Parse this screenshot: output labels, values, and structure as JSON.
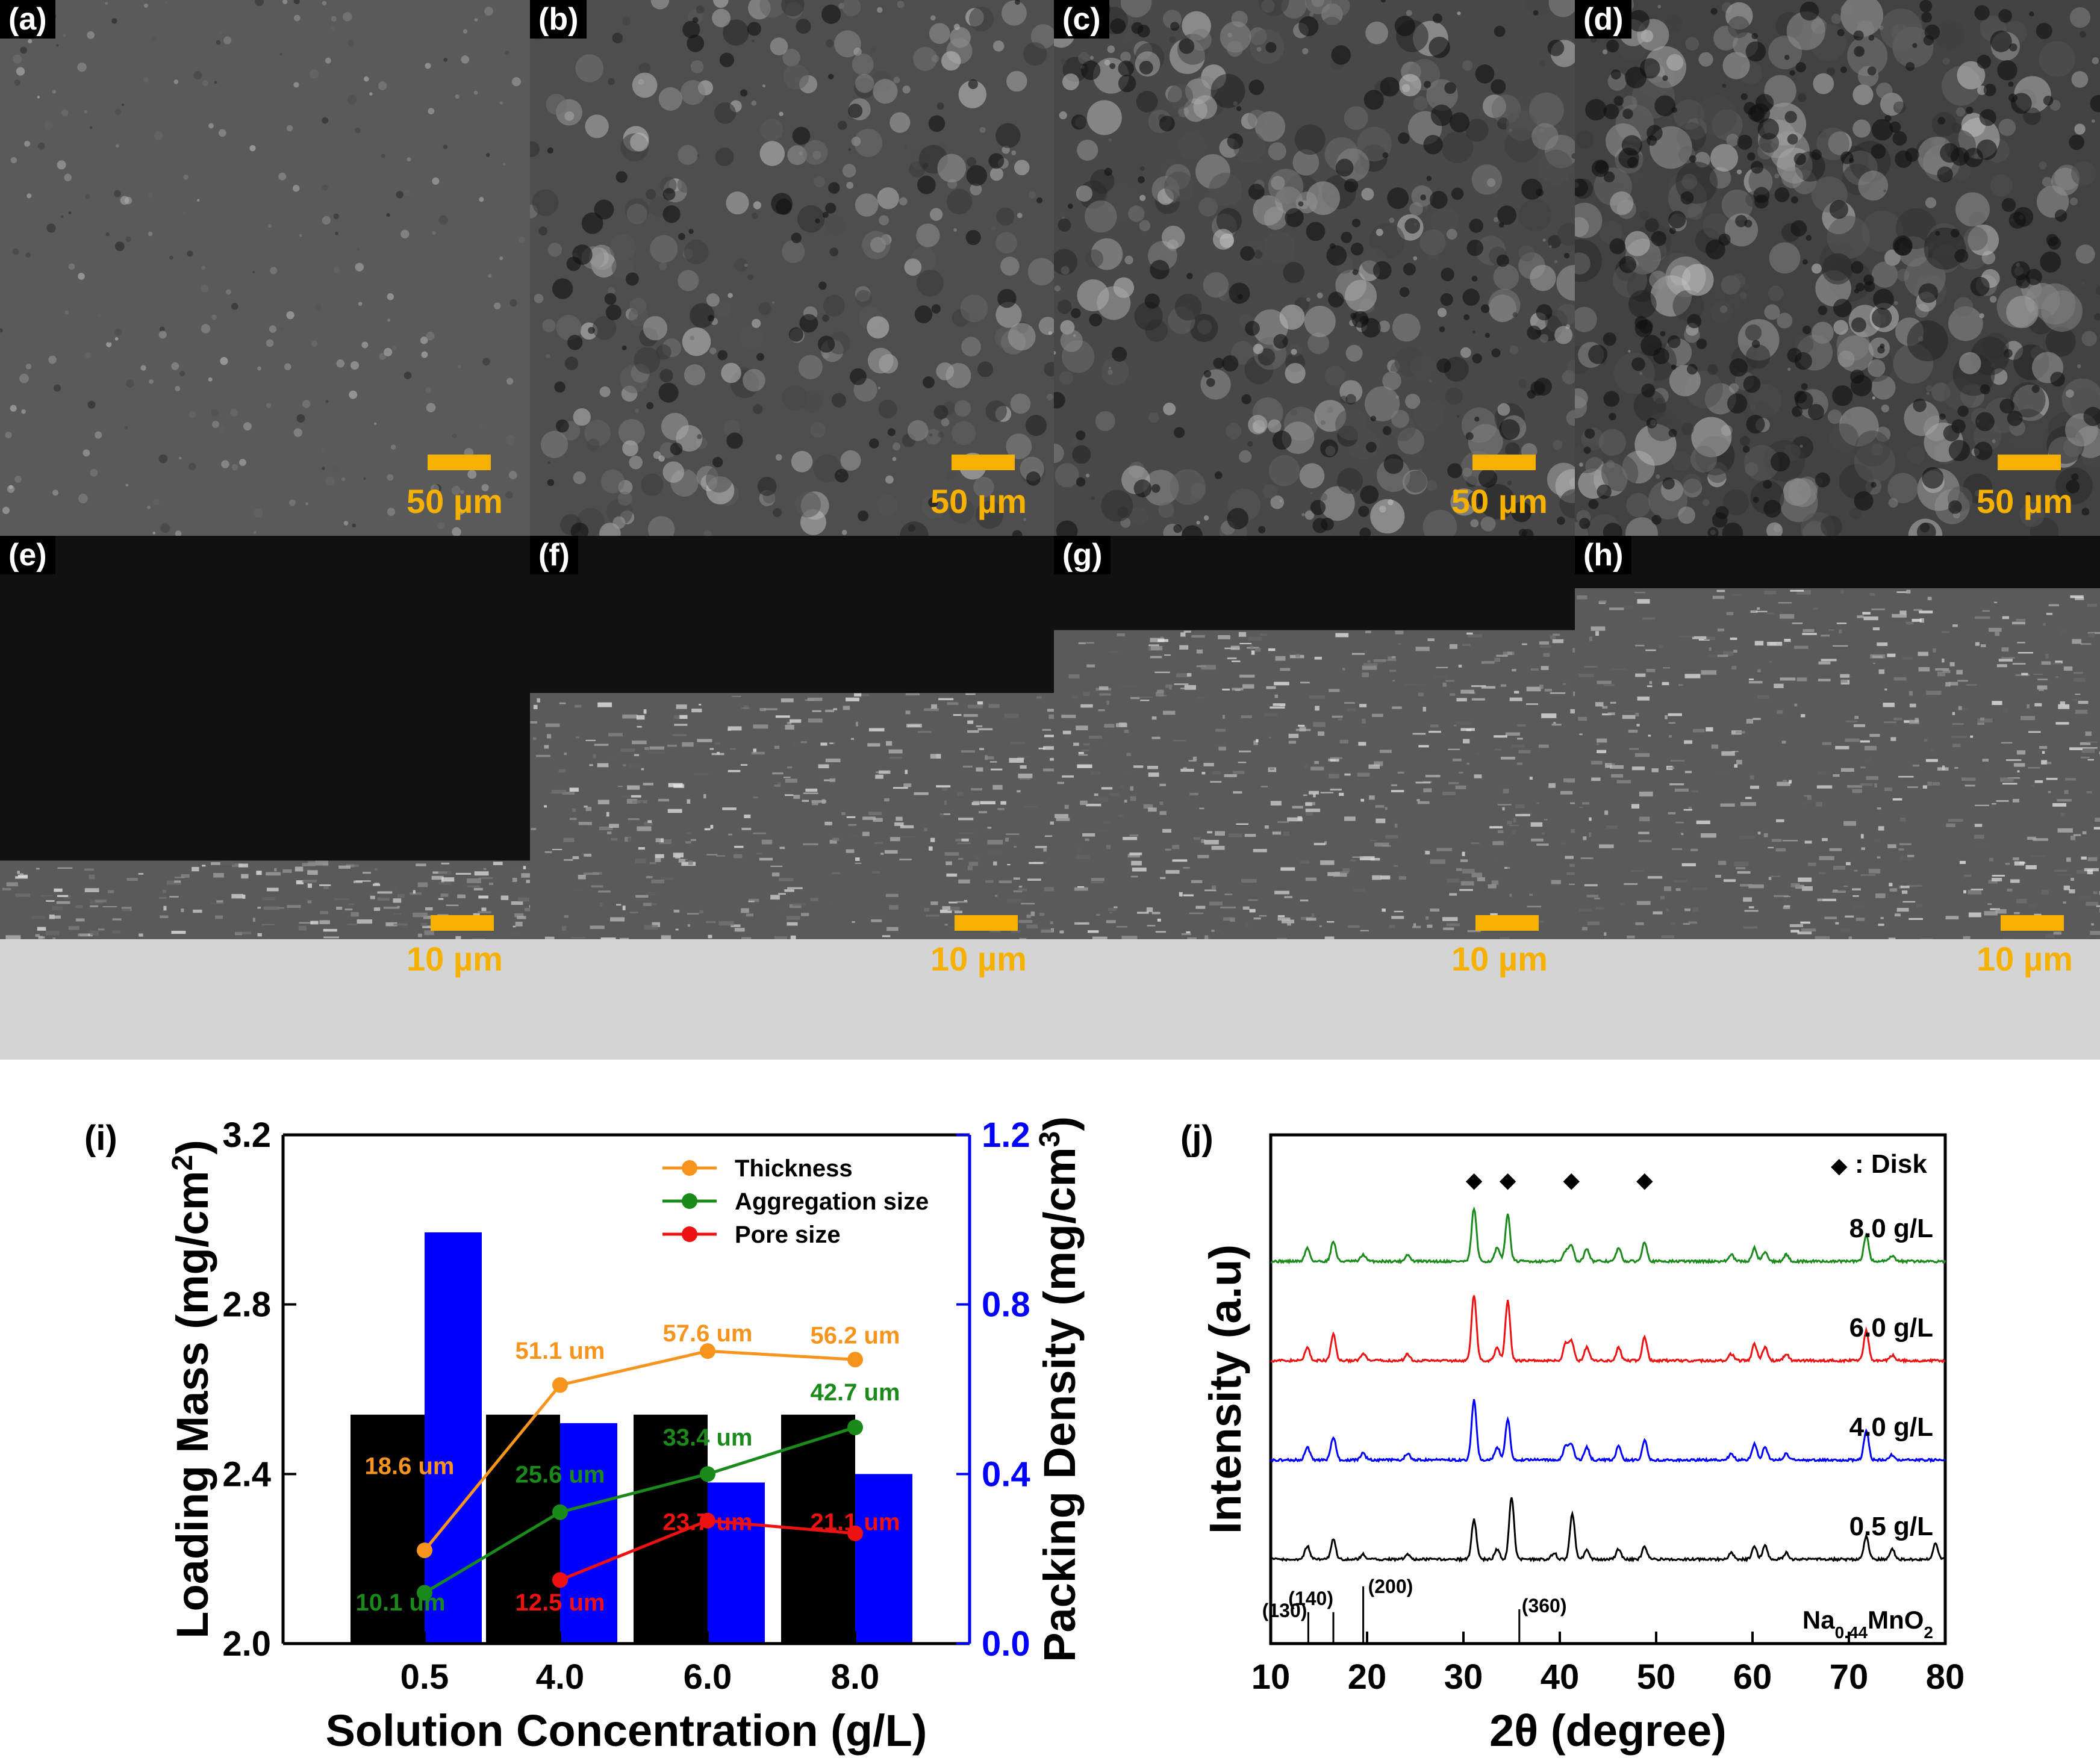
{
  "sem_panels": [
    {
      "label": "(a)",
      "scale": "50 µm"
    },
    {
      "label": "(b)",
      "scale": "50 µm"
    },
    {
      "label": "(c)",
      "scale": "50 µm"
    },
    {
      "label": "(d)",
      "scale": "50 µm"
    },
    {
      "label": "(e)",
      "scale": "10 µm"
    },
    {
      "label": "(f)",
      "scale": "10 µm"
    },
    {
      "label": "(g)",
      "scale": "10 µm"
    },
    {
      "label": "(h)",
      "scale": "10 µm"
    }
  ],
  "colors": {
    "scale_bar": "#f5b000",
    "thickness": "#f7941d",
    "aggregation": "#1a8a1a",
    "pore": "#ee1111",
    "packing_bar": "#0000ff",
    "loading_bar": "#000000"
  },
  "chart_data": [
    {
      "panel": "(i)",
      "type": "bar",
      "categories": [
        "0.5",
        "4.0",
        "6.0",
        "8.0"
      ],
      "xlabel": "Solution Concentration (g/L)",
      "ylabel": "Loading Mass (mg/cm",
      "ylabel_sup": "2",
      "ylabel_end": ")",
      "ylim": [
        2.0,
        3.2
      ],
      "yticks": [
        "2.0",
        "2.4",
        "2.8",
        "3.2"
      ],
      "y2label": "Packing Density (mg/cm",
      "y2label_sup": "3",
      "y2label_end": ")",
      "y2lim": [
        0.0,
        1.2
      ],
      "y2ticks": [
        "0.0",
        "0.4",
        "0.8",
        "1.2"
      ],
      "bars": [
        {
          "name": "Loading Mass",
          "axis": "left",
          "values": [
            2.54,
            2.54,
            2.54,
            2.54
          ]
        },
        {
          "name": "Packing Density",
          "axis": "right",
          "values": [
            0.97,
            0.52,
            0.38,
            0.4
          ]
        }
      ],
      "lines": [
        {
          "name": "Thickness",
          "values": [
            2.22,
            2.61,
            2.69,
            2.67
          ],
          "labels": [
            "18.6 um",
            "51.1 um",
            "57.6 um",
            "56.2 um"
          ]
        },
        {
          "name": "Aggregation size",
          "values": [
            2.12,
            2.31,
            2.4,
            2.51
          ],
          "labels": [
            "10.1 um",
            "25.6 um",
            "33.4 um",
            "42.7 um"
          ]
        },
        {
          "name": "Pore size",
          "values": [
            null,
            2.15,
            2.29,
            2.26
          ],
          "labels": [
            "",
            "12.5 um",
            "23.7 um",
            "21.1 um"
          ]
        }
      ],
      "legend": "top-right"
    },
    {
      "panel": "(j)",
      "type": "line",
      "xlabel": "2θ (degree)",
      "ylabel": "Intensity (a.u)",
      "xlim": [
        10,
        80
      ],
      "xticks": [
        "10",
        "20",
        "30",
        "40",
        "50",
        "60",
        "70",
        "80"
      ],
      "legend_marker": "◆",
      "legend_text": ": Disk",
      "disk_peaks": [
        31.1,
        34.6,
        41.2,
        48.8
      ],
      "series": [
        {
          "name": "8.0 g/L",
          "peaks": [
            [
              13.8,
              0.2
            ],
            [
              16.5,
              0.3
            ],
            [
              19.6,
              0.1
            ],
            [
              24.2,
              0.1
            ],
            [
              31.1,
              0.8
            ],
            [
              33.5,
              0.2
            ],
            [
              34.6,
              0.7
            ],
            [
              40.6,
              0.15
            ],
            [
              41.2,
              0.25
            ],
            [
              42.8,
              0.2
            ],
            [
              46.1,
              0.2
            ],
            [
              48.8,
              0.3
            ],
            [
              57.8,
              0.1
            ],
            [
              60.2,
              0.2
            ],
            [
              61.3,
              0.15
            ],
            [
              63.5,
              0.1
            ],
            [
              71.8,
              0.4
            ],
            [
              74.5,
              0.08
            ]
          ]
        },
        {
          "name": "6.0 g/L",
          "peaks": [
            [
              13.8,
              0.2
            ],
            [
              16.5,
              0.4
            ],
            [
              19.6,
              0.1
            ],
            [
              24.2,
              0.1
            ],
            [
              31.1,
              1.0
            ],
            [
              33.5,
              0.2
            ],
            [
              34.6,
              0.9
            ],
            [
              40.6,
              0.25
            ],
            [
              41.2,
              0.3
            ],
            [
              42.8,
              0.2
            ],
            [
              46.1,
              0.2
            ],
            [
              48.8,
              0.35
            ],
            [
              57.8,
              0.1
            ],
            [
              60.2,
              0.25
            ],
            [
              61.3,
              0.2
            ],
            [
              63.5,
              0.1
            ],
            [
              71.8,
              0.45
            ],
            [
              74.5,
              0.08
            ]
          ]
        },
        {
          "name": "4.0 g/L",
          "peaks": [
            [
              13.8,
              0.2
            ],
            [
              16.5,
              0.35
            ],
            [
              19.6,
              0.1
            ],
            [
              24.2,
              0.1
            ],
            [
              31.1,
              0.9
            ],
            [
              33.5,
              0.2
            ],
            [
              34.6,
              0.6
            ],
            [
              40.6,
              0.2
            ],
            [
              41.2,
              0.25
            ],
            [
              42.8,
              0.2
            ],
            [
              46.1,
              0.2
            ],
            [
              48.8,
              0.3
            ],
            [
              57.8,
              0.1
            ],
            [
              60.2,
              0.25
            ],
            [
              61.3,
              0.2
            ],
            [
              63.5,
              0.1
            ],
            [
              71.8,
              0.45
            ],
            [
              74.5,
              0.08
            ]
          ]
        },
        {
          "name": "0.5 g/L",
          "peaks": [
            [
              13.8,
              0.2
            ],
            [
              16.5,
              0.3
            ],
            [
              19.6,
              0.08
            ],
            [
              24.2,
              0.08
            ],
            [
              31.1,
              0.6
            ],
            [
              33.5,
              0.15
            ],
            [
              35.0,
              0.95
            ],
            [
              39.4,
              0.1
            ],
            [
              41.3,
              0.7
            ],
            [
              42.8,
              0.15
            ],
            [
              46.1,
              0.15
            ],
            [
              48.8,
              0.2
            ],
            [
              57.8,
              0.1
            ],
            [
              60.2,
              0.2
            ],
            [
              61.3,
              0.2
            ],
            [
              63.5,
              0.1
            ],
            [
              71.8,
              0.35
            ],
            [
              74.5,
              0.15
            ],
            [
              79.0,
              0.25
            ]
          ]
        }
      ],
      "reference": {
        "name_main": "Na",
        "name_sub1": "0.44",
        "name_mid": "MnO",
        "name_sub2": "2",
        "lines": [
          {
            "x": 13.9,
            "h": 0.55,
            "label": "(130)"
          },
          {
            "x": 16.5,
            "h": 0.55,
            "label": "(140)"
          },
          {
            "x": 19.6,
            "h": 1.0,
            "label": "(200)"
          },
          {
            "x": 35.8,
            "h": 0.6,
            "label": "(360)"
          }
        ]
      }
    }
  ]
}
